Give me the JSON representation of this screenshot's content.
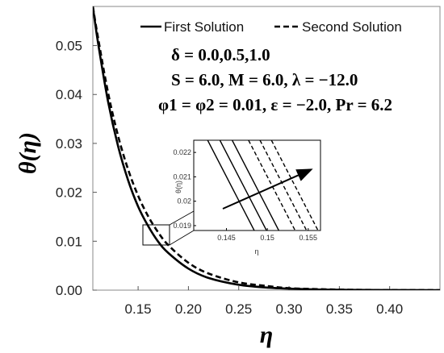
{
  "chart_data": [
    {
      "type": "line",
      "xlabel": "η",
      "ylabel": "θ(η)",
      "xlim": [
        0.105,
        0.45
      ],
      "ylim": [
        0.0,
        0.058
      ],
      "x_ticks": [
        "0.15",
        "0.20",
        "0.25",
        "0.30",
        "0.35",
        "0.40"
      ],
      "y_ticks": [
        "0.00",
        "0.01",
        "0.02",
        "0.03",
        "0.04",
        "0.05"
      ],
      "legend": {
        "position": "top",
        "entries": [
          "First Solution",
          "Second Solution"
        ]
      },
      "annotations": [
        "δ = 0.0,0.5,1.0",
        "S = 6.0, M = 6.0, λ = −12.0",
        "φ1 = φ2 = 0.01, ε = −2.0, Pr = 6.2"
      ],
      "series": [
        {
          "name": "First Solution",
          "style": "solid",
          "x": [
            0.105,
            0.11,
            0.12,
            0.13,
            0.14,
            0.15,
            0.16,
            0.17,
            0.18,
            0.2,
            0.22,
            0.25,
            0.28,
            0.3,
            0.33,
            0.36,
            0.4,
            0.45
          ],
          "y": [
            0.058,
            0.0508,
            0.0387,
            0.0295,
            0.0225,
            0.0171,
            0.0131,
            0.0099,
            0.0076,
            0.0044,
            0.0025,
            0.0011,
            0.0005,
            0.0003,
            0.00012,
            5e-05,
            2e-05,
            0.0
          ]
        },
        {
          "name": "Second Solution",
          "style": "dashed",
          "x": [
            0.105,
            0.11,
            0.12,
            0.13,
            0.14,
            0.15,
            0.16,
            0.17,
            0.18,
            0.2,
            0.22,
            0.25,
            0.28,
            0.3,
            0.33,
            0.36,
            0.4,
            0.45
          ],
          "y": [
            0.058,
            0.0518,
            0.0405,
            0.0316,
            0.0247,
            0.0193,
            0.0151,
            0.0118,
            0.0092,
            0.0056,
            0.0034,
            0.0016,
            0.0008,
            0.0004,
            0.0002,
            8e-05,
            3e-05,
            0.0
          ]
        }
      ]
    },
    {
      "type": "line",
      "role": "inset (zoom of box region)",
      "xlabel": "η",
      "ylabel": "θ(η)",
      "xlim": [
        0.141,
        0.1565
      ],
      "ylim": [
        0.0188,
        0.0225
      ],
      "x_ticks": [
        "0.145",
        "0.15",
        "0.155"
      ],
      "y_ticks": [
        "0.019",
        "0.02",
        "0.021",
        "0.022"
      ],
      "arrow": "increasing δ",
      "series": [
        {
          "style": "solid",
          "x": [
            0.1427,
            0.1484
          ],
          "y": [
            0.0225,
            0.0188
          ]
        },
        {
          "style": "solid",
          "x": [
            0.1442,
            0.1499
          ],
          "y": [
            0.0225,
            0.0188
          ]
        },
        {
          "style": "solid",
          "x": [
            0.1457,
            0.1514
          ],
          "y": [
            0.0225,
            0.0188
          ]
        },
        {
          "style": "dashed",
          "x": [
            0.1477,
            0.1534
          ],
          "y": [
            0.0225,
            0.0188
          ]
        },
        {
          "style": "dashed",
          "x": [
            0.1491,
            0.1548
          ],
          "y": [
            0.0225,
            0.0188
          ]
        },
        {
          "style": "dashed",
          "x": [
            0.1505,
            0.1562
          ],
          "y": [
            0.0225,
            0.0188
          ]
        }
      ]
    }
  ]
}
